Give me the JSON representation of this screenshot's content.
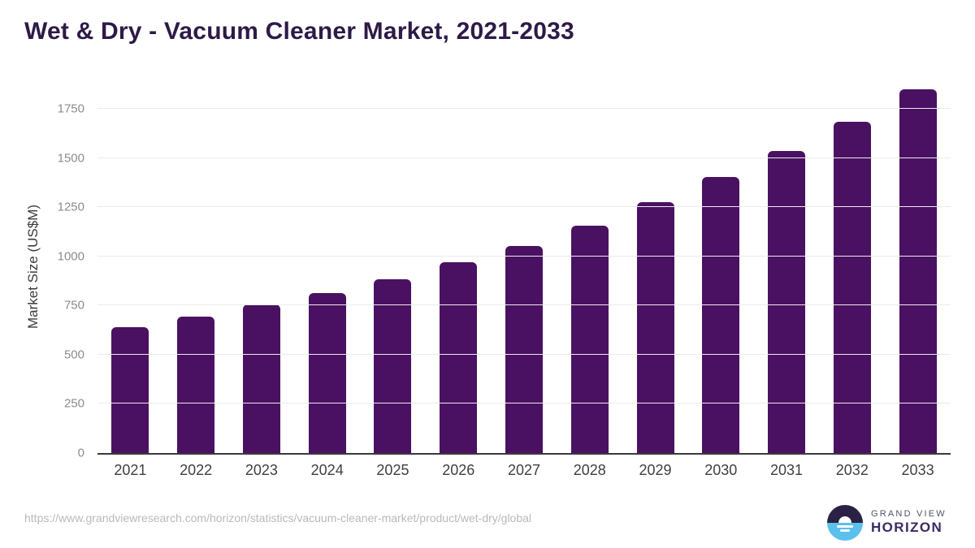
{
  "title": "Wet & Dry - Vacuum Cleaner Market, 2021-2033",
  "source_url": "https://www.grandviewresearch.com/horizon/statistics/vacuum-cleaner-market/product/wet-dry/global",
  "logo": {
    "line1": "GRAND VIEW",
    "line2": "HORIZON",
    "mark": "sunrise-horizon-circle-icon"
  },
  "colors": {
    "bar": "#4a1162",
    "title": "#2e1a47",
    "axis_line": "#3a3a3a",
    "gridline": "#ebebeb",
    "ytick_text": "#8c8c8c",
    "xtick_text": "#3f3f3f",
    "source_text": "#b9b9b9",
    "logo_navy": "#2b2145",
    "logo_blue": "#5bc0eb",
    "logo_gray": "#55516b",
    "logo_purple": "#3b2a5f"
  },
  "chart_data": {
    "type": "bar",
    "title": "Wet & Dry - Vacuum Cleaner Market, 2021-2033",
    "categories": [
      "2021",
      "2022",
      "2023",
      "2024",
      "2025",
      "2026",
      "2027",
      "2028",
      "2029",
      "2030",
      "2031",
      "2032",
      "2033"
    ],
    "values": [
      640,
      695,
      755,
      815,
      885,
      970,
      1055,
      1155,
      1275,
      1405,
      1535,
      1685,
      1850
    ],
    "xlabel": "",
    "ylabel": "Market Size (US$M)",
    "ylim": [
      0,
      1900
    ],
    "yticks": [
      0,
      250,
      500,
      750,
      1000,
      1250,
      1500,
      1750
    ],
    "grid": "horizontal",
    "legend": false,
    "bar_color": "#4a1162"
  }
}
